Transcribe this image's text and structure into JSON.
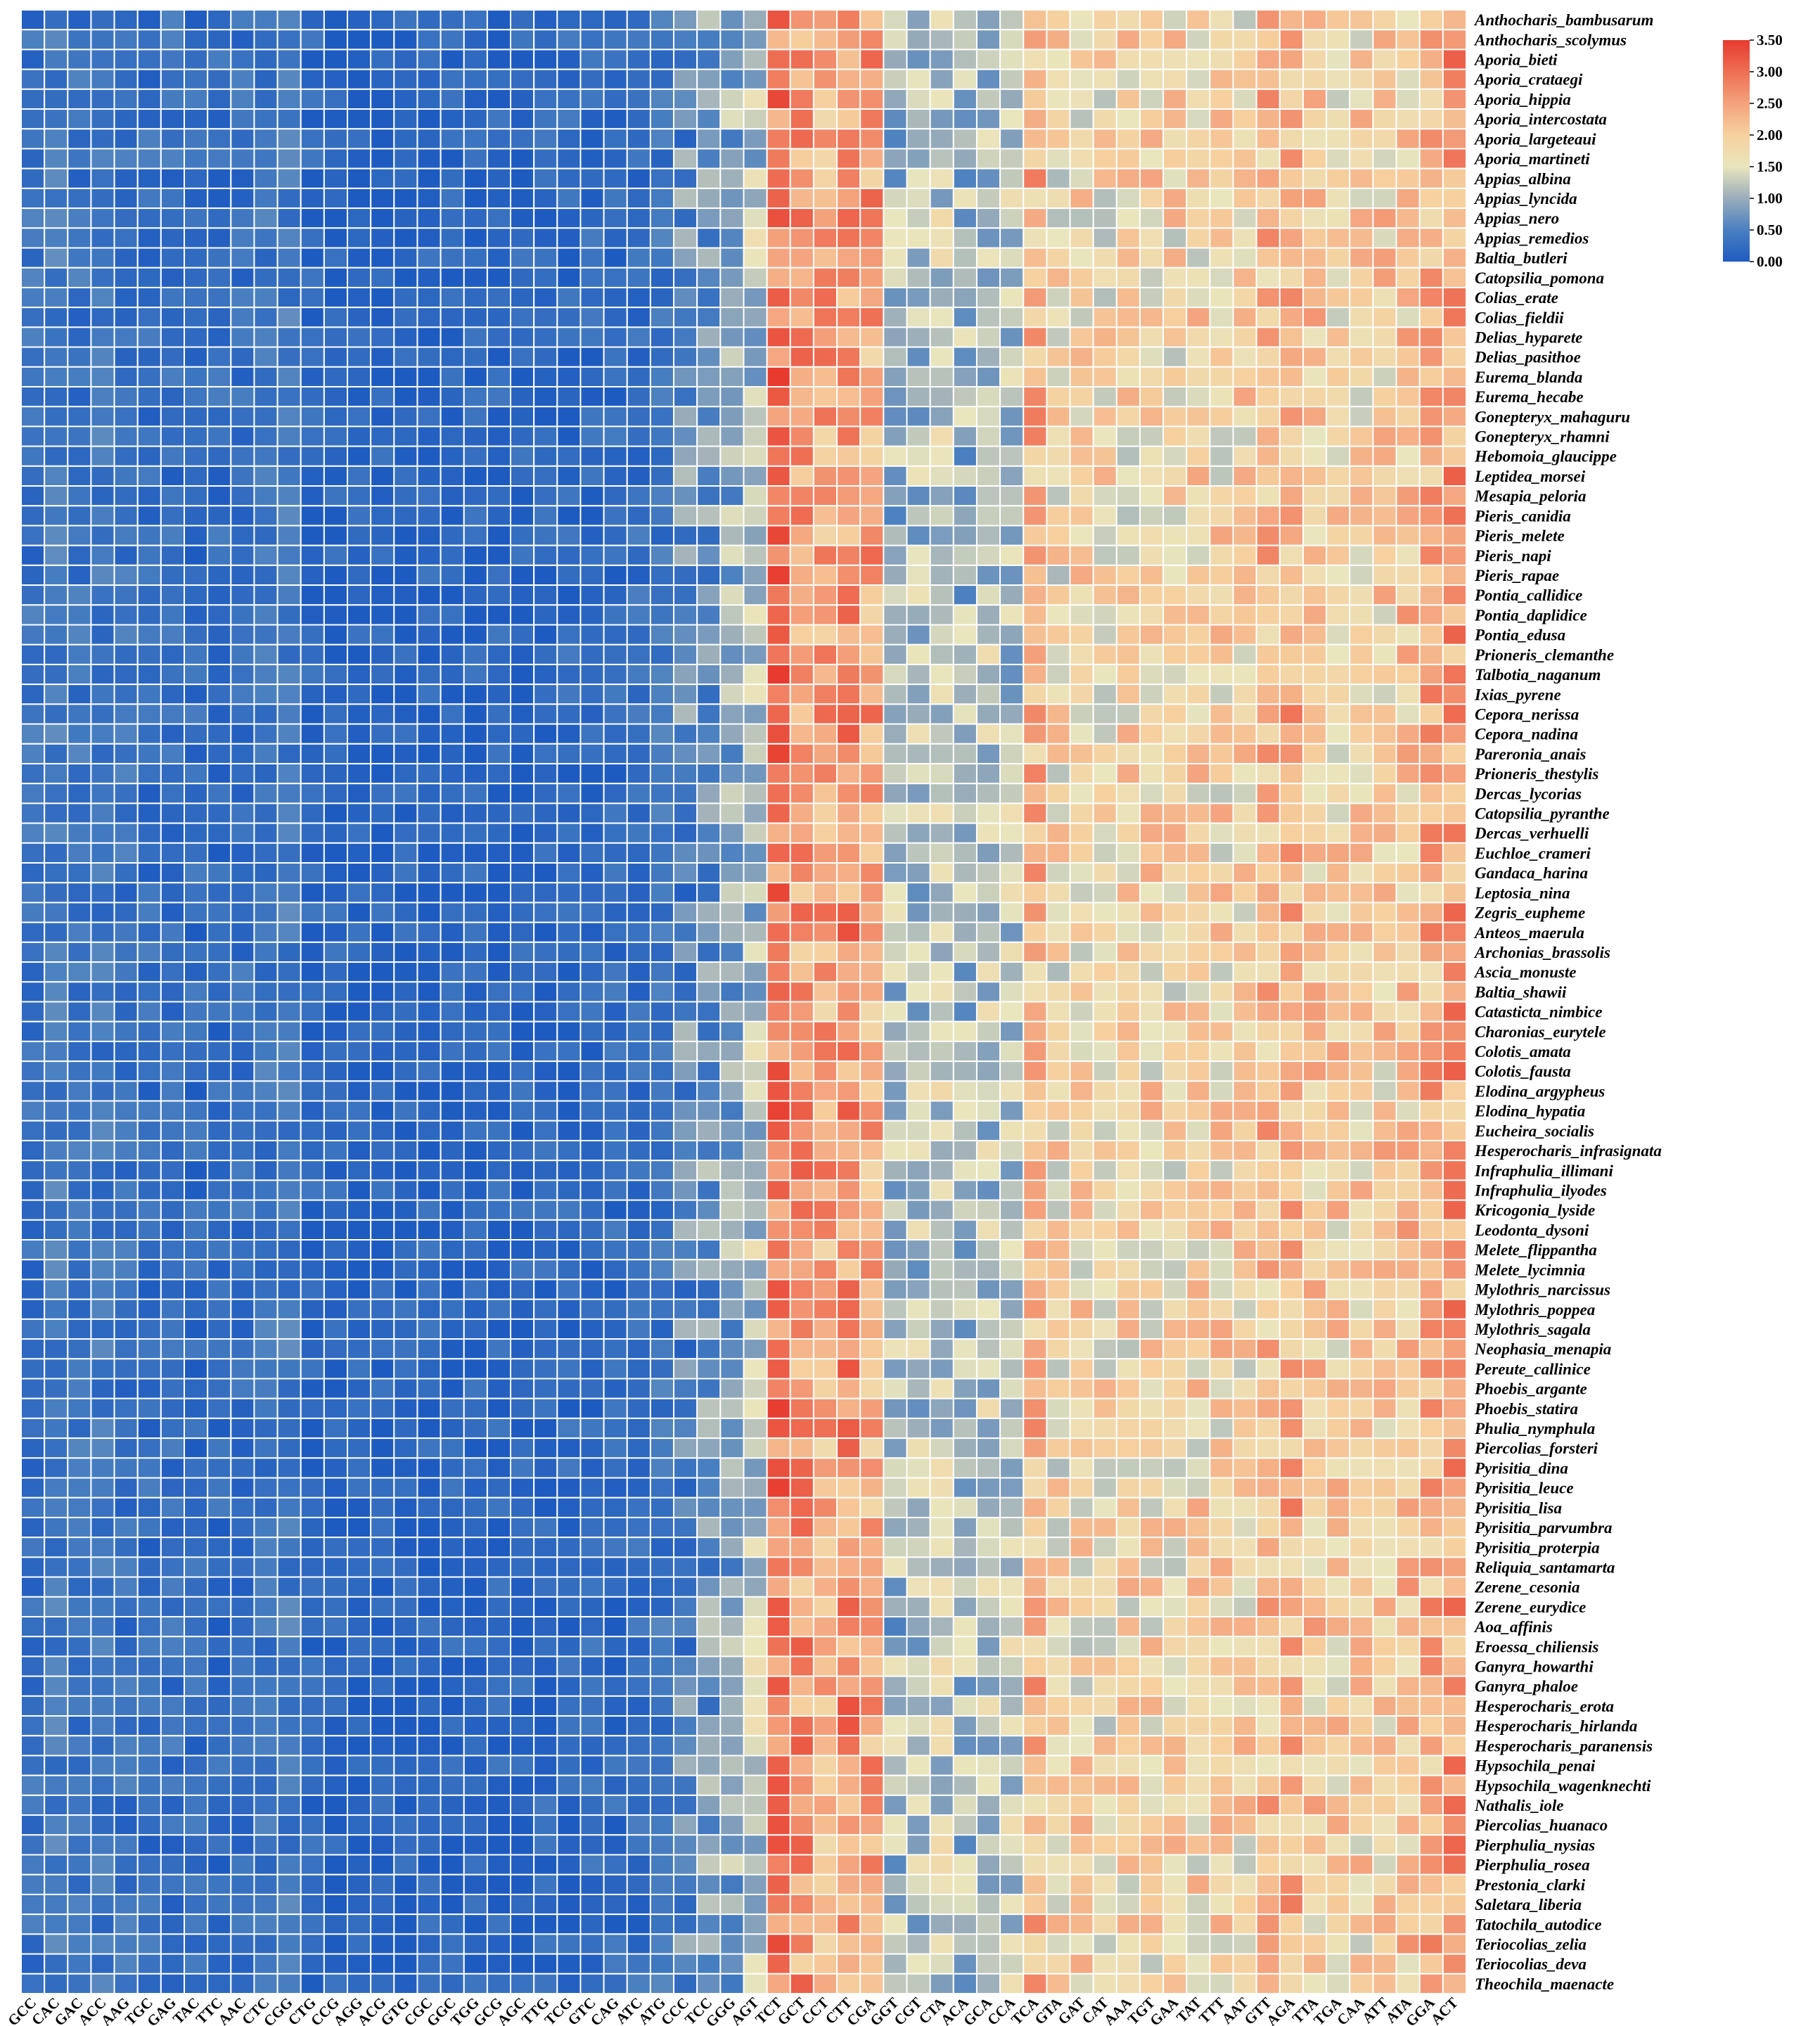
{
  "chart_data": {
    "type": "heatmap",
    "title": "",
    "xlabel": "",
    "ylabel": "",
    "value_range": [
      0,
      3.5
    ],
    "colorbar": {
      "ticks": [
        "0.00",
        "0.50",
        "1.00",
        "1.50",
        "2.00",
        "2.50",
        "3.00",
        "3.50"
      ],
      "colors": [
        "#1e5bc0",
        "#4a80c0",
        "#9aadb9",
        "#e9e6bd",
        "#f6d09e",
        "#f4a37d",
        "#ee6e53",
        "#e63b2e"
      ]
    },
    "columns": [
      "GCC",
      "CAC",
      "GAC",
      "ACC",
      "AAG",
      "TGC",
      "GAG",
      "TAC",
      "TTC",
      "AAC",
      "CTC",
      "CGG",
      "CTG",
      "CCG",
      "AGG",
      "ACG",
      "GTG",
      "CGC",
      "GGC",
      "TGG",
      "GCG",
      "AGC",
      "TTG",
      "TCG",
      "GTC",
      "CAG",
      "ATC",
      "ATG",
      "CCC",
      "TCC",
      "GGG",
      "AGT",
      "TCT",
      "GCT",
      "CCT",
      "CTT",
      "CGA",
      "GGT",
      "CGT",
      "CTA",
      "ACA",
      "GCA",
      "CCA",
      "TCA",
      "GTA",
      "GAT",
      "CAT",
      "AAA",
      "TGT",
      "GAA",
      "TAT",
      "TTT",
      "AAT",
      "GTT",
      "AGA",
      "TTA",
      "TGA",
      "CAA",
      "ATT",
      "ATA",
      "GGA",
      "ACT"
    ],
    "rows": [
      "Anthocharis_bambusarum",
      "Anthocharis_scolymus",
      "Aporia_bieti",
      "Aporia_crataegi",
      "Aporia_hippia",
      "Aporia_intercostata",
      "Aporia_largeteaui",
      "Aporia_martineti",
      "Appias_albina",
      "Appias_lyncida",
      "Appias_nero",
      "Appias_remedios",
      "Baltia_butleri",
      "Catopsilia_pomona",
      "Colias_erate",
      "Colias_fieldii",
      "Delias_hyparete",
      "Delias_pasithoe",
      "Eurema_blanda",
      "Eurema_hecabe",
      "Gonepteryx_mahaguru",
      "Gonepteryx_rhamni",
      "Hebomoia_glaucippe",
      "Leptidea_morsei",
      "Mesapia_peloria",
      "Pieris_canidia",
      "Pieris_melete",
      "Pieris_napi",
      "Pieris_rapae",
      "Pontia_callidice",
      "Pontia_daplidice",
      "Pontia_edusa",
      "Prioneris_clemanthe",
      "Talbotia_naganum",
      "Ixias_pyrene",
      "Cepora_nerissa",
      "Cepora_nadina",
      "Pareronia_anais",
      "Prioneris_thestylis",
      "Dercas_lycorias",
      "Catopsilia_pyranthe",
      "Dercas_verhuelli",
      "Euchloe_crameri",
      "Gandaca_harina",
      "Leptosia_nina",
      "Zegris_eupheme",
      "Anteos_maerula",
      "Archonias_brassolis",
      "Ascia_monuste",
      "Baltia_shawii",
      "Catasticta_nimbice",
      "Charonias_eurytele",
      "Colotis_amata",
      "Colotis_fausta",
      "Elodina_argypheus",
      "Elodina_hypatia",
      "Eucheira_socialis",
      "Hesperocharis_infrasignata",
      "Infraphulia_illimani",
      "Infraphulia_ilyodes",
      "Kricogonia_lyside",
      "Leodonta_dysoni",
      "Melete_flippantha",
      "Melete_lycimnia",
      "Mylothris_narcissus",
      "Mylothris_poppea",
      "Mylothris_sagala",
      "Neophasia_menapia",
      "Pereute_callinice",
      "Phoebis_argante",
      "Phoebis_statira",
      "Phulia_nymphula",
      "Piercolias_forsteri",
      "Pyrisitia_dina",
      "Pyrisitia_leuce",
      "Pyrisitia_lisa",
      "Pyrisitia_parvumbra",
      "Pyrisitia_proterpia",
      "Reliquia_santamarta",
      "Zerene_cesonia",
      "Zerene_eurydice",
      "Aoa_affinis",
      "Eroessa_chiliensis",
      "Ganyra_howarthi",
      "Ganyra_phaloe",
      "Hesperocharis_erota",
      "Hesperocharis_hirlanda",
      "Hesperocharis_paranensis",
      "Hypsochila_penai",
      "Hypsochila_wagenknechti",
      "Nathalis_iole",
      "Piercolias_huanaco",
      "Pierphulia_nysias",
      "Pierphulia_rosea",
      "Prestonia_clarki",
      "Saletara_liberia",
      "Tatochila_autodice",
      "Teriocolias_zelia",
      "Teriocolias_deva",
      "Theochila_maenacte"
    ],
    "column_mean_values": [
      0.3,
      0.42,
      0.32,
      0.36,
      0.3,
      0.26,
      0.28,
      0.22,
      0.24,
      0.26,
      0.34,
      0.4,
      0.14,
      0.12,
      0.1,
      0.1,
      0.1,
      0.12,
      0.12,
      0.12,
      0.14,
      0.14,
      0.16,
      0.18,
      0.2,
      0.22,
      0.26,
      0.34,
      0.6,
      0.72,
      0.9,
      1.15,
      2.9,
      2.55,
      2.4,
      2.65,
      2.45,
      1.05,
      1.15,
      1.3,
      1.05,
      1.2,
      1.2,
      2.25,
      1.75,
      1.8,
      1.75,
      1.8,
      1.85,
      1.8,
      1.85,
      1.85,
      1.85,
      2.15,
      2.3,
      2.0,
      1.9,
      1.85,
      1.95,
      2.05,
      2.3,
      2.5
    ],
    "note": "Relative synonymous codon usage heatmap; cell values vary per row around each column mean."
  }
}
